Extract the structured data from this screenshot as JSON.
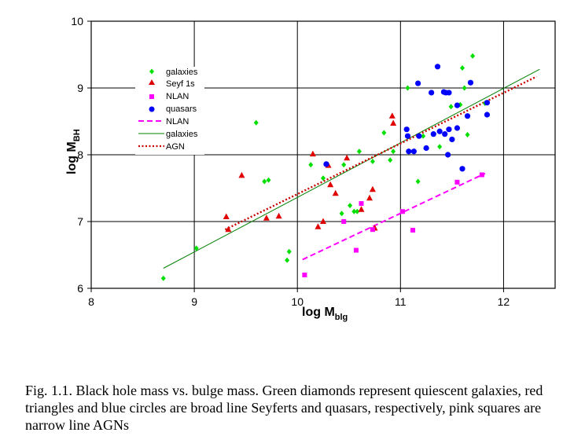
{
  "chart_data": {
    "type": "scatter",
    "xlabel": "log M",
    "xlabel_sub": "blg",
    "ylabel": "log M",
    "ylabel_sub": "BH",
    "xlim": [
      8,
      12.5
    ],
    "ylim": [
      6,
      10
    ],
    "xticks": [
      "8",
      "9",
      "10",
      "11",
      "12"
    ],
    "yticks": [
      "6",
      "7",
      "8",
      "9",
      "10"
    ],
    "grid": true,
    "legend_position": "upper-left",
    "series": [
      {
        "name": "galaxies",
        "marker": "diamond",
        "color": "#00e000",
        "points": [
          [
            8.7,
            6.15
          ],
          [
            9.02,
            6.6
          ],
          [
            9.6,
            8.48
          ],
          [
            9.68,
            7.6
          ],
          [
            9.72,
            7.62
          ],
          [
            9.9,
            6.42
          ],
          [
            9.92,
            6.55
          ],
          [
            10.13,
            7.85
          ],
          [
            10.25,
            7.65
          ],
          [
            10.43,
            7.12
          ],
          [
            10.45,
            7.85
          ],
          [
            10.51,
            7.24
          ],
          [
            10.55,
            7.15
          ],
          [
            10.58,
            7.15
          ],
          [
            10.6,
            8.05
          ],
          [
            10.73,
            7.9
          ],
          [
            10.84,
            8.33
          ],
          [
            10.9,
            7.92
          ],
          [
            10.93,
            8.05
          ],
          [
            11.07,
            9.0
          ],
          [
            11.17,
            7.6
          ],
          [
            11.22,
            8.28
          ],
          [
            11.38,
            8.12
          ],
          [
            11.49,
            8.72
          ],
          [
            11.58,
            8.75
          ],
          [
            11.6,
            9.3
          ],
          [
            11.62,
            9.0
          ],
          [
            11.65,
            8.3
          ],
          [
            11.7,
            9.48
          ],
          [
            11.82,
            8.77
          ]
        ]
      },
      {
        "name": "Seyf 1s",
        "marker": "triangle",
        "color": "#e00000",
        "points": [
          [
            9.31,
            7.07
          ],
          [
            9.33,
            6.88
          ],
          [
            9.46,
            7.69
          ],
          [
            9.7,
            7.05
          ],
          [
            9.82,
            7.08
          ],
          [
            10.15,
            8.01
          ],
          [
            10.2,
            6.92
          ],
          [
            10.25,
            7.0
          ],
          [
            10.3,
            7.84
          ],
          [
            10.32,
            7.55
          ],
          [
            10.37,
            7.42
          ],
          [
            10.48,
            7.95
          ],
          [
            10.62,
            7.18
          ],
          [
            10.7,
            7.35
          ],
          [
            10.73,
            7.48
          ],
          [
            10.75,
            6.9
          ],
          [
            10.92,
            8.58
          ],
          [
            10.93,
            8.47
          ]
        ]
      },
      {
        "name": "NLAN",
        "marker": "square",
        "color": "#ff00ff",
        "points": [
          [
            10.07,
            6.2
          ],
          [
            10.45,
            7.0
          ],
          [
            10.57,
            6.57
          ],
          [
            10.62,
            7.27
          ],
          [
            10.73,
            6.88
          ],
          [
            11.02,
            7.15
          ],
          [
            11.12,
            6.87
          ],
          [
            11.55,
            7.59
          ],
          [
            11.79,
            7.7
          ]
        ]
      },
      {
        "name": "quasars",
        "marker": "circle",
        "color": "#0000ff",
        "points": [
          [
            10.28,
            7.86
          ],
          [
            11.06,
            8.38
          ],
          [
            11.07,
            8.28
          ],
          [
            11.08,
            8.05
          ],
          [
            11.13,
            8.05
          ],
          [
            11.17,
            9.07
          ],
          [
            11.18,
            8.28
          ],
          [
            11.25,
            8.1
          ],
          [
            11.3,
            8.93
          ],
          [
            11.32,
            8.31
          ],
          [
            11.36,
            9.32
          ],
          [
            11.38,
            8.35
          ],
          [
            11.42,
            8.94
          ],
          [
            11.43,
            8.31
          ],
          [
            11.46,
            8.0
          ],
          [
            11.47,
            8.93
          ],
          [
            11.47,
            8.38
          ],
          [
            11.5,
            8.23
          ],
          [
            11.55,
            8.74
          ],
          [
            11.55,
            8.4
          ],
          [
            11.6,
            7.79
          ],
          [
            11.65,
            8.58
          ],
          [
            11.68,
            9.08
          ],
          [
            11.84,
            8.78
          ],
          [
            11.84,
            8.6
          ],
          [
            11.44,
            8.93
          ]
        ]
      }
    ],
    "fits": [
      {
        "name": "NLAN",
        "style": "dashed",
        "color": "#ff00ff",
        "x": [
          10.05,
          11.82
        ],
        "y": [
          6.43,
          7.72
        ]
      },
      {
        "name": "galaxies",
        "style": "solid",
        "color": "#008000",
        "x": [
          8.7,
          12.35
        ],
        "y": [
          6.3,
          9.28
        ]
      },
      {
        "name": "AGN",
        "style": "dotted",
        "color": "#cc0000",
        "x": [
          9.3,
          12.32
        ],
        "y": [
          6.88,
          9.17
        ]
      }
    ]
  },
  "caption": "Fig. 1.1. Black hole mass vs. bulge mass. Green diamonds represent quiescent galaxies, red triangles and blue circles are broad line Seyferts and quasars, respectively, pink squares are narrow line AGNs"
}
